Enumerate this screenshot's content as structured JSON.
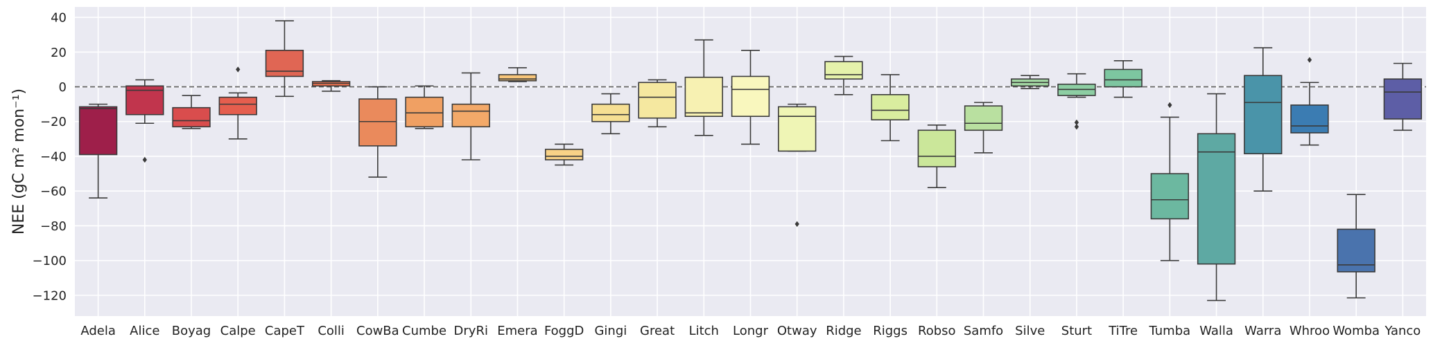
{
  "chart_data": {
    "type": "box",
    "ylabel": "NEE (gC m² mon⁻¹)",
    "xlabel": "",
    "ylim": [
      -132,
      46
    ],
    "yticks": [
      40,
      20,
      0,
      -20,
      -40,
      -60,
      -80,
      -100,
      -120
    ],
    "ytick_labels": [
      "40",
      "20",
      "0",
      "−20",
      "−40",
      "−60",
      "−80",
      "−100",
      "−120"
    ],
    "reference_line": 0,
    "grid": true,
    "categories": [
      "Adela",
      "Alice",
      "Boyag",
      "Calpe",
      "CapeT",
      "Colli",
      "CowBa",
      "Cumbe",
      "DryRi",
      "Emera",
      "FoggD",
      "Gingi",
      "Great",
      "Litch",
      "Longr",
      "Otway",
      "Ridge",
      "Riggs",
      "Robso",
      "Samfo",
      "Silve",
      "Sturt",
      "TiTre",
      "Tumba",
      "Walla",
      "Warra",
      "Whroo",
      "Womba",
      "Yanco"
    ],
    "colors": [
      "#9e1f4a",
      "#c1354d",
      "#d94d4d",
      "#e55e4e",
      "#e06654",
      "#ef7350",
      "#ea8a5c",
      "#f0a063",
      "#f3a969",
      "#f7c57a",
      "#f8d287",
      "#f6df93",
      "#f5e8a0",
      "#f7f1b2",
      "#f9f7be",
      "#eff5b5",
      "#e5f2ab",
      "#d9ed9f",
      "#cbe79a",
      "#b9e0a0",
      "#a3d8a3",
      "#8dcea3",
      "#7dc6a0",
      "#6cb8a0",
      "#5ea9a3",
      "#4a94a9",
      "#3b7cb2",
      "#4a73ad",
      "#5d5ea6"
    ],
    "boxes": [
      {
        "whisker_low": -64,
        "q1": -39,
        "median": -12.5,
        "q3": -11.5,
        "whisker_high": -10,
        "outliers": []
      },
      {
        "whisker_low": -21,
        "q1": -16,
        "median": -2,
        "q3": 0.5,
        "whisker_high": 4,
        "outliers": [
          -42
        ]
      },
      {
        "whisker_low": -24,
        "q1": -23,
        "median": -19.5,
        "q3": -12,
        "whisker_high": -5,
        "outliers": []
      },
      {
        "whisker_low": -30,
        "q1": -16,
        "median": -10,
        "q3": -6,
        "whisker_high": -3.5,
        "outliers": [
          10
        ]
      },
      {
        "whisker_low": -5.5,
        "q1": 6,
        "median": 9,
        "q3": 21,
        "whisker_high": 38,
        "outliers": []
      },
      {
        "whisker_low": -2.5,
        "q1": 0.5,
        "median": 2,
        "q3": 3,
        "whisker_high": 3.5,
        "outliers": []
      },
      {
        "whisker_low": -52,
        "q1": -34,
        "median": -20,
        "q3": -7,
        "whisker_high": 0,
        "outliers": []
      },
      {
        "whisker_low": -24,
        "q1": -23,
        "median": -15,
        "q3": -6,
        "whisker_high": 0.5,
        "outliers": []
      },
      {
        "whisker_low": -42,
        "q1": -23,
        "median": -14,
        "q3": -10,
        "whisker_high": 8,
        "outliers": []
      },
      {
        "whisker_low": 3,
        "q1": 3.5,
        "median": 4.5,
        "q3": 7,
        "whisker_high": 11,
        "outliers": []
      },
      {
        "whisker_low": -45,
        "q1": -42,
        "median": -40,
        "q3": -36,
        "whisker_high": -33,
        "outliers": []
      },
      {
        "whisker_low": -27,
        "q1": -20,
        "median": -16,
        "q3": -10,
        "whisker_high": -4,
        "outliers": []
      },
      {
        "whisker_low": -23,
        "q1": -18,
        "median": -6,
        "q3": 2.5,
        "whisker_high": 4,
        "outliers": []
      },
      {
        "whisker_low": -28,
        "q1": -17,
        "median": -15,
        "q3": 5.5,
        "whisker_high": 27,
        "outliers": []
      },
      {
        "whisker_low": -33,
        "q1": -17,
        "median": -1.5,
        "q3": 6,
        "whisker_high": 21,
        "outliers": []
      },
      {
        "whisker_low": -37,
        "q1": -37,
        "median": -17,
        "q3": -11.5,
        "whisker_high": -10,
        "outliers": [
          -79
        ]
      },
      {
        "whisker_low": -4.5,
        "q1": 4.5,
        "median": 7,
        "q3": 14.5,
        "whisker_high": 17.5,
        "outliers": []
      },
      {
        "whisker_low": -31,
        "q1": -19,
        "median": -13.5,
        "q3": -4.5,
        "whisker_high": 7,
        "outliers": []
      },
      {
        "whisker_low": -58,
        "q1": -46,
        "median": -40,
        "q3": -25,
        "whisker_high": -22,
        "outliers": []
      },
      {
        "whisker_low": -38,
        "q1": -25,
        "median": -21,
        "q3": -11,
        "whisker_high": -9,
        "outliers": []
      },
      {
        "whisker_low": -1,
        "q1": 0.5,
        "median": 2.5,
        "q3": 4.5,
        "whisker_high": 6.5,
        "outliers": []
      },
      {
        "whisker_low": -6,
        "q1": -5,
        "median": -1.5,
        "q3": 1.5,
        "whisker_high": 7.5,
        "outliers": [
          -20.5,
          -23
        ]
      },
      {
        "whisker_low": -6,
        "q1": 0,
        "median": 4,
        "q3": 10,
        "whisker_high": 15,
        "outliers": []
      },
      {
        "whisker_low": -100,
        "q1": -76,
        "median": -65,
        "q3": -50,
        "whisker_high": -17.5,
        "outliers": [
          -10.5
        ]
      },
      {
        "whisker_low": -123,
        "q1": -102,
        "median": -37.5,
        "q3": -27,
        "whisker_high": -4,
        "outliers": []
      },
      {
        "whisker_low": -60,
        "q1": -38.5,
        "median": -9,
        "q3": 6.5,
        "whisker_high": 22.5,
        "outliers": []
      },
      {
        "whisker_low": -33.5,
        "q1": -26.5,
        "median": -22.5,
        "q3": -10.5,
        "whisker_high": 2.5,
        "outliers": [
          15.5
        ]
      },
      {
        "whisker_low": -121.5,
        "q1": -106.5,
        "median": -102.5,
        "q3": -82,
        "whisker_high": -62,
        "outliers": []
      },
      {
        "whisker_low": -25,
        "q1": -18.5,
        "median": -3,
        "q3": 4.5,
        "whisker_high": 13.5,
        "outliers": []
      }
    ],
    "colors_meta": {
      "plot_background": "#eaeaf2",
      "grid": "#ffffff",
      "edge": "#3a3a3a",
      "reference_line": "#666666"
    }
  }
}
